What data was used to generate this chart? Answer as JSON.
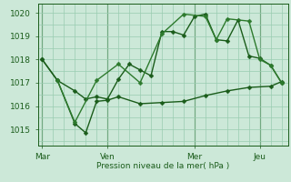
{
  "bg_color": "#cce8d8",
  "grid_color": "#99ccb0",
  "line_color_dark": "#1a5c1a",
  "line_color_mid": "#2d7a2d",
  "xlabel": "Pression niveau de la mer( hPa )",
  "yticks": [
    1015,
    1016,
    1017,
    1018,
    1019,
    1020
  ],
  "ylim": [
    1014.3,
    1020.4
  ],
  "xtick_labels": [
    "Mar",
    "Ven",
    "Mer",
    "Jeu"
  ],
  "xtick_positions": [
    0.0,
    3.0,
    7.0,
    10.0
  ],
  "xlim": [
    -0.2,
    11.3
  ],
  "vlines": [
    0.0,
    3.0,
    7.0,
    10.0
  ],
  "series1": [
    [
      0.0,
      1018.0
    ],
    [
      0.7,
      1017.1
    ],
    [
      1.5,
      1016.65
    ],
    [
      2.0,
      1016.3
    ],
    [
      2.5,
      1016.4
    ],
    [
      3.0,
      1016.3
    ],
    [
      3.5,
      1017.15
    ],
    [
      4.0,
      1017.8
    ],
    [
      4.5,
      1017.55
    ],
    [
      5.0,
      1017.3
    ],
    [
      5.5,
      1019.2
    ],
    [
      6.0,
      1019.2
    ],
    [
      6.5,
      1019.05
    ],
    [
      7.0,
      1019.85
    ],
    [
      7.5,
      1019.95
    ],
    [
      8.0,
      1018.85
    ],
    [
      8.5,
      1018.8
    ],
    [
      9.0,
      1019.7
    ],
    [
      9.5,
      1018.15
    ],
    [
      10.0,
      1018.05
    ],
    [
      10.5,
      1017.75
    ],
    [
      11.0,
      1017.0
    ]
  ],
  "series2": [
    [
      0.0,
      1018.0
    ],
    [
      0.7,
      1017.1
    ],
    [
      1.5,
      1015.25
    ],
    [
      2.0,
      1014.85
    ],
    [
      2.5,
      1016.2
    ],
    [
      3.0,
      1016.25
    ],
    [
      3.5,
      1016.4
    ],
    [
      4.5,
      1016.1
    ],
    [
      5.5,
      1016.15
    ],
    [
      6.5,
      1016.2
    ],
    [
      7.5,
      1016.45
    ],
    [
      8.5,
      1016.65
    ],
    [
      9.5,
      1016.8
    ],
    [
      10.5,
      1016.85
    ],
    [
      11.0,
      1017.05
    ]
  ],
  "series3": [
    [
      0.7,
      1017.1
    ],
    [
      1.5,
      1015.3
    ],
    [
      2.5,
      1017.1
    ],
    [
      3.5,
      1017.8
    ],
    [
      4.5,
      1017.0
    ],
    [
      5.5,
      1019.1
    ],
    [
      6.5,
      1019.95
    ],
    [
      7.5,
      1019.85
    ],
    [
      8.0,
      1018.85
    ],
    [
      8.5,
      1019.75
    ],
    [
      9.5,
      1019.65
    ],
    [
      10.0,
      1018.0
    ],
    [
      10.5,
      1017.75
    ],
    [
      11.0,
      1017.0
    ]
  ]
}
